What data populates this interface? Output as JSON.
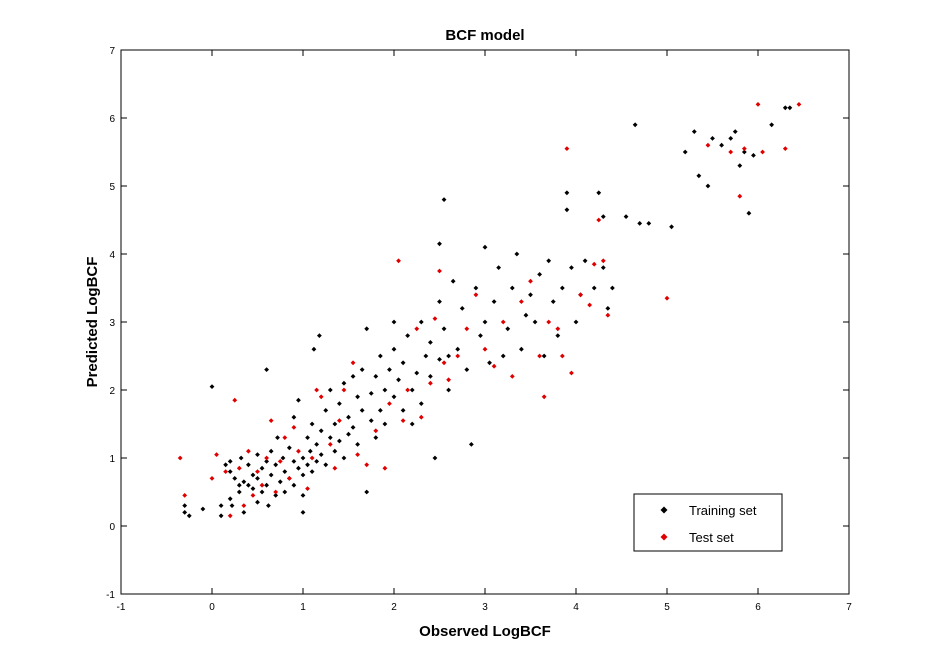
{
  "chart_data": {
    "type": "scatter",
    "title": "BCF model",
    "xlabel": "Observed LogBCF",
    "ylabel": "Predicted LogBCF",
    "xlim": [
      -1,
      7
    ],
    "ylim": [
      -1,
      7
    ],
    "xticks": [
      -1,
      0,
      1,
      2,
      3,
      4,
      5,
      6,
      7
    ],
    "yticks": [
      -1,
      0,
      1,
      2,
      3,
      4,
      5,
      6,
      7
    ],
    "grid": false,
    "legend_position": "bottom-right",
    "series": [
      {
        "name": "Training set",
        "color": "#000000",
        "marker": "diamond",
        "points": [
          [
            -0.3,
            0.3
          ],
          [
            -0.3,
            0.2
          ],
          [
            -0.25,
            0.15
          ],
          [
            -0.1,
            0.25
          ],
          [
            0.0,
            2.05
          ],
          [
            0.1,
            0.3
          ],
          [
            0.1,
            0.15
          ],
          [
            0.15,
            0.9
          ],
          [
            0.2,
            0.95
          ],
          [
            0.2,
            0.8
          ],
          [
            0.2,
            0.4
          ],
          [
            0.22,
            0.3
          ],
          [
            0.25,
            0.7
          ],
          [
            0.3,
            0.6
          ],
          [
            0.3,
            0.5
          ],
          [
            0.32,
            1.0
          ],
          [
            0.35,
            0.65
          ],
          [
            0.35,
            0.2
          ],
          [
            0.4,
            0.9
          ],
          [
            0.4,
            0.6
          ],
          [
            0.45,
            0.75
          ],
          [
            0.45,
            0.55
          ],
          [
            0.5,
            1.05
          ],
          [
            0.5,
            0.7
          ],
          [
            0.5,
            0.35
          ],
          [
            0.55,
            0.85
          ],
          [
            0.55,
            0.5
          ],
          [
            0.6,
            2.3
          ],
          [
            0.6,
            0.95
          ],
          [
            0.6,
            0.6
          ],
          [
            0.62,
            0.3
          ],
          [
            0.65,
            1.1
          ],
          [
            0.65,
            0.75
          ],
          [
            0.7,
            0.9
          ],
          [
            0.7,
            0.45
          ],
          [
            0.72,
            1.3
          ],
          [
            0.75,
            0.65
          ],
          [
            0.78,
            1.0
          ],
          [
            0.8,
            0.8
          ],
          [
            0.8,
            0.5
          ],
          [
            0.85,
            1.15
          ],
          [
            0.85,
            0.7
          ],
          [
            0.9,
            0.95
          ],
          [
            0.9,
            0.6
          ],
          [
            0.9,
            1.6
          ],
          [
            0.95,
            0.85
          ],
          [
            0.95,
            1.85
          ],
          [
            1.0,
            1.0
          ],
          [
            1.0,
            0.75
          ],
          [
            1.0,
            0.45
          ],
          [
            1.0,
            0.2
          ],
          [
            1.05,
            1.3
          ],
          [
            1.05,
            0.9
          ],
          [
            1.08,
            1.1
          ],
          [
            1.1,
            1.5
          ],
          [
            1.1,
            0.8
          ],
          [
            1.12,
            2.6
          ],
          [
            1.15,
            1.2
          ],
          [
            1.15,
            0.95
          ],
          [
            1.18,
            2.8
          ],
          [
            1.2,
            1.4
          ],
          [
            1.2,
            1.05
          ],
          [
            1.25,
            1.7
          ],
          [
            1.25,
            0.9
          ],
          [
            1.3,
            1.3
          ],
          [
            1.3,
            2.0
          ],
          [
            1.35,
            1.5
          ],
          [
            1.35,
            1.1
          ],
          [
            1.4,
            1.8
          ],
          [
            1.4,
            1.25
          ],
          [
            1.45,
            2.1
          ],
          [
            1.45,
            1.0
          ],
          [
            1.5,
            1.6
          ],
          [
            1.5,
            1.35
          ],
          [
            1.55,
            2.2
          ],
          [
            1.55,
            1.45
          ],
          [
            1.6,
            1.9
          ],
          [
            1.6,
            1.2
          ],
          [
            1.65,
            1.7
          ],
          [
            1.65,
            2.3
          ],
          [
            1.7,
            2.9
          ],
          [
            1.7,
            0.5
          ],
          [
            1.75,
            1.95
          ],
          [
            1.75,
            1.55
          ],
          [
            1.8,
            2.2
          ],
          [
            1.8,
            1.3
          ],
          [
            1.85,
            2.5
          ],
          [
            1.85,
            1.7
          ],
          [
            1.9,
            2.0
          ],
          [
            1.9,
            1.5
          ],
          [
            1.95,
            2.3
          ],
          [
            2.0,
            2.6
          ],
          [
            2.0,
            1.9
          ],
          [
            2.0,
            3.0
          ],
          [
            2.05,
            2.15
          ],
          [
            2.1,
            1.7
          ],
          [
            2.1,
            2.4
          ],
          [
            2.15,
            2.8
          ],
          [
            2.2,
            2.0
          ],
          [
            2.2,
            1.5
          ],
          [
            2.25,
            2.25
          ],
          [
            2.3,
            3.0
          ],
          [
            2.3,
            1.8
          ],
          [
            2.35,
            2.5
          ],
          [
            2.4,
            2.2
          ],
          [
            2.4,
            2.7
          ],
          [
            2.45,
            1.0
          ],
          [
            2.5,
            2.45
          ],
          [
            2.5,
            3.3
          ],
          [
            2.5,
            4.15
          ],
          [
            2.55,
            4.8
          ],
          [
            2.55,
            2.9
          ],
          [
            2.6,
            2.5
          ],
          [
            2.6,
            2.0
          ],
          [
            2.65,
            3.6
          ],
          [
            2.7,
            2.6
          ],
          [
            2.75,
            3.2
          ],
          [
            2.8,
            2.3
          ],
          [
            2.85,
            1.2
          ],
          [
            2.9,
            3.5
          ],
          [
            2.95,
            2.8
          ],
          [
            3.0,
            4.1
          ],
          [
            3.0,
            3.0
          ],
          [
            3.05,
            2.4
          ],
          [
            3.1,
            3.3
          ],
          [
            3.15,
            3.8
          ],
          [
            3.2,
            2.5
          ],
          [
            3.25,
            2.9
          ],
          [
            3.3,
            3.5
          ],
          [
            3.35,
            4.0
          ],
          [
            3.4,
            2.6
          ],
          [
            3.45,
            3.1
          ],
          [
            3.5,
            3.4
          ],
          [
            3.55,
            3.0
          ],
          [
            3.6,
            3.7
          ],
          [
            3.65,
            2.5
          ],
          [
            3.7,
            3.9
          ],
          [
            3.75,
            3.3
          ],
          [
            3.8,
            2.8
          ],
          [
            3.85,
            3.5
          ],
          [
            3.9,
            4.9
          ],
          [
            3.9,
            4.65
          ],
          [
            3.95,
            3.8
          ],
          [
            4.0,
            3.0
          ],
          [
            4.05,
            3.4
          ],
          [
            4.1,
            3.9
          ],
          [
            4.2,
            3.5
          ],
          [
            4.25,
            4.9
          ],
          [
            4.3,
            4.55
          ],
          [
            4.3,
            3.8
          ],
          [
            4.35,
            3.2
          ],
          [
            4.4,
            3.5
          ],
          [
            4.55,
            4.55
          ],
          [
            4.65,
            5.9
          ],
          [
            4.7,
            4.45
          ],
          [
            4.8,
            4.45
          ],
          [
            5.05,
            4.4
          ],
          [
            5.2,
            5.5
          ],
          [
            5.3,
            5.8
          ],
          [
            5.35,
            5.15
          ],
          [
            5.45,
            5.0
          ],
          [
            5.5,
            5.7
          ],
          [
            5.6,
            5.6
          ],
          [
            5.7,
            5.7
          ],
          [
            5.75,
            5.8
          ],
          [
            5.8,
            5.3
          ],
          [
            5.85,
            5.5
          ],
          [
            5.9,
            4.6
          ],
          [
            5.95,
            5.45
          ],
          [
            6.15,
            5.9
          ],
          [
            6.3,
            6.15
          ],
          [
            6.35,
            6.15
          ]
        ]
      },
      {
        "name": "Test set",
        "color": "#e00000",
        "marker": "diamond",
        "points": [
          [
            -0.35,
            1.0
          ],
          [
            -0.3,
            0.45
          ],
          [
            0.0,
            0.7
          ],
          [
            0.05,
            1.05
          ],
          [
            0.15,
            0.8
          ],
          [
            0.2,
            0.15
          ],
          [
            0.25,
            1.85
          ],
          [
            0.3,
            0.85
          ],
          [
            0.35,
            0.3
          ],
          [
            0.4,
            1.1
          ],
          [
            0.45,
            0.45
          ],
          [
            0.5,
            0.8
          ],
          [
            0.55,
            0.6
          ],
          [
            0.6,
            1.0
          ],
          [
            0.65,
            1.55
          ],
          [
            0.7,
            0.5
          ],
          [
            0.75,
            0.95
          ],
          [
            0.8,
            1.3
          ],
          [
            0.85,
            0.7
          ],
          [
            0.9,
            1.45
          ],
          [
            0.95,
            1.1
          ],
          [
            1.05,
            0.55
          ],
          [
            1.1,
            1.0
          ],
          [
            1.15,
            2.0
          ],
          [
            1.2,
            1.9
          ],
          [
            1.3,
            1.2
          ],
          [
            1.35,
            0.85
          ],
          [
            1.4,
            1.55
          ],
          [
            1.45,
            2.0
          ],
          [
            1.55,
            2.4
          ],
          [
            1.6,
            1.05
          ],
          [
            1.7,
            0.9
          ],
          [
            1.8,
            1.4
          ],
          [
            1.9,
            0.85
          ],
          [
            1.95,
            1.8
          ],
          [
            2.05,
            3.9
          ],
          [
            2.1,
            1.55
          ],
          [
            2.15,
            2.0
          ],
          [
            2.25,
            2.9
          ],
          [
            2.3,
            1.6
          ],
          [
            2.4,
            2.1
          ],
          [
            2.45,
            3.05
          ],
          [
            2.5,
            3.75
          ],
          [
            2.55,
            2.4
          ],
          [
            2.6,
            2.15
          ],
          [
            2.7,
            2.5
          ],
          [
            2.8,
            2.9
          ],
          [
            2.9,
            3.4
          ],
          [
            3.0,
            2.6
          ],
          [
            3.1,
            2.35
          ],
          [
            3.2,
            3.0
          ],
          [
            3.3,
            2.2
          ],
          [
            3.4,
            3.3
          ],
          [
            3.5,
            3.6
          ],
          [
            3.6,
            2.5
          ],
          [
            3.65,
            1.9
          ],
          [
            3.7,
            3.0
          ],
          [
            3.8,
            2.9
          ],
          [
            3.85,
            2.5
          ],
          [
            3.9,
            5.55
          ],
          [
            3.95,
            2.25
          ],
          [
            4.05,
            3.4
          ],
          [
            4.15,
            3.25
          ],
          [
            4.2,
            3.85
          ],
          [
            4.25,
            4.5
          ],
          [
            4.3,
            3.9
          ],
          [
            4.35,
            3.1
          ],
          [
            5.0,
            3.35
          ],
          [
            5.45,
            5.6
          ],
          [
            5.7,
            5.5
          ],
          [
            5.8,
            4.85
          ],
          [
            5.85,
            5.55
          ],
          [
            6.0,
            6.2
          ],
          [
            6.05,
            5.5
          ],
          [
            6.3,
            5.55
          ],
          [
            6.45,
            6.2
          ]
        ]
      }
    ]
  }
}
